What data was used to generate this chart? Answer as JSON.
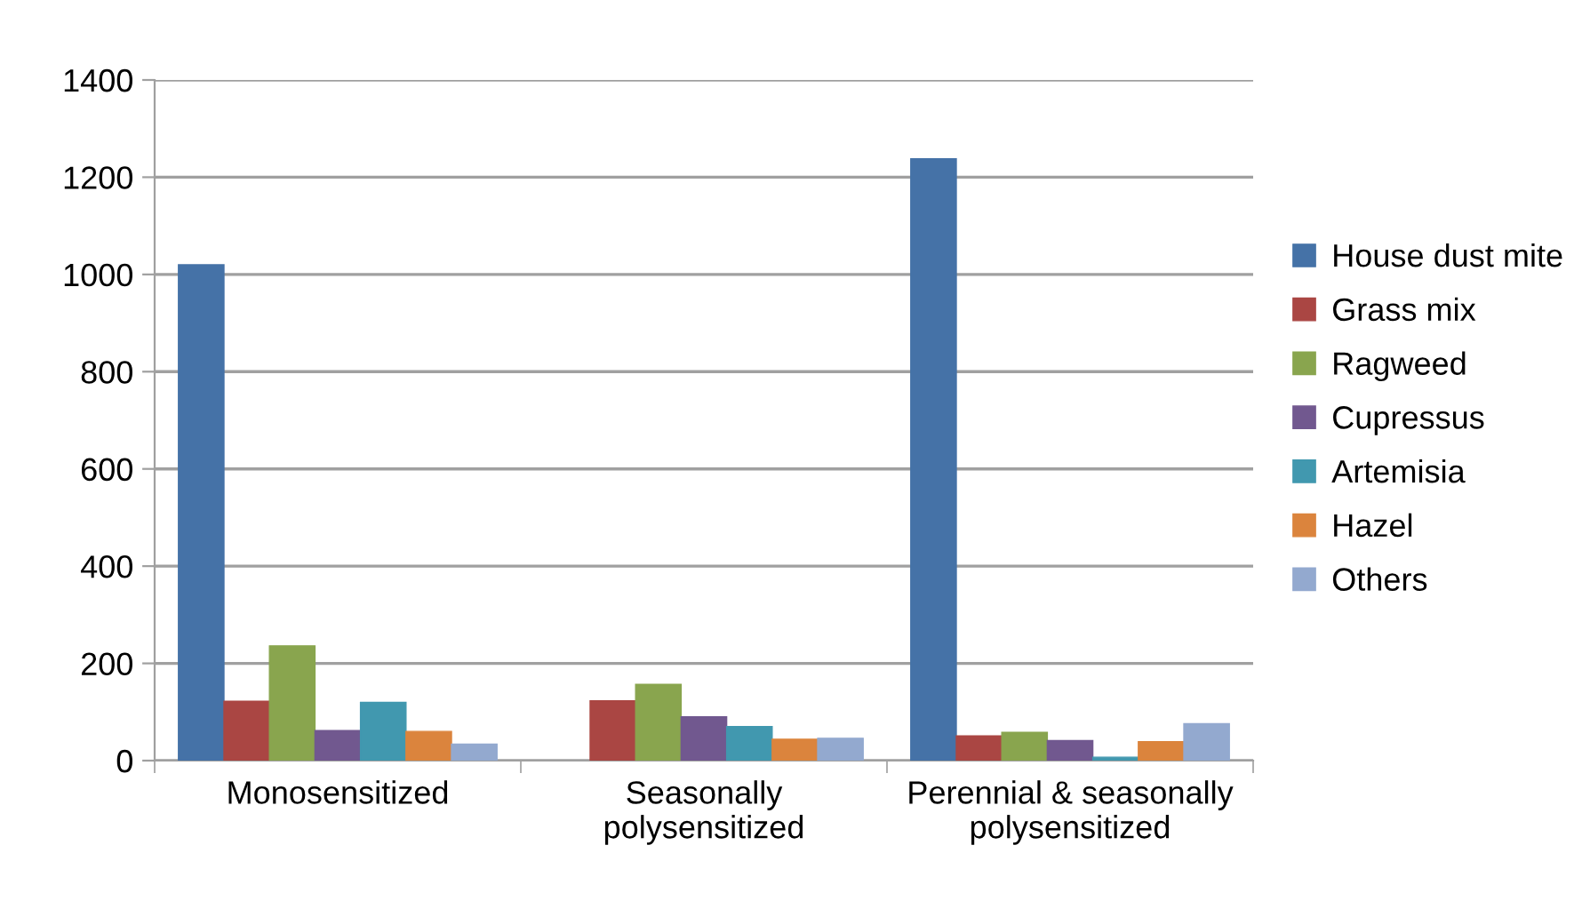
{
  "chart_data": {
    "type": "bar",
    "categories": [
      "Monosensitized",
      "Seasonally\npolysensitized",
      "Perennial & seasonally\npolysensitized"
    ],
    "series": [
      {
        "name": "House dust mite",
        "color": "#4572a7",
        "values": [
          1020,
          null,
          1238
        ]
      },
      {
        "name": "Grass mix",
        "color": "#aa4643",
        "values": [
          122,
          123,
          51
        ]
      },
      {
        "name": "Ragweed",
        "color": "#89a54e",
        "values": [
          236,
          157,
          58
        ]
      },
      {
        "name": "Cupressus",
        "color": "#71588f",
        "values": [
          62,
          90,
          41
        ]
      },
      {
        "name": "Artemisia",
        "color": "#4198af",
        "values": [
          120,
          70,
          7
        ]
      },
      {
        "name": "Hazel",
        "color": "#db843d",
        "values": [
          60,
          44,
          39
        ]
      },
      {
        "name": "Others",
        "color": "#93a9cf",
        "values": [
          34,
          46,
          76
        ]
      }
    ],
    "ylim": [
      0,
      1400
    ],
    "yticks": [
      0,
      200,
      400,
      600,
      800,
      1000,
      1200,
      1400
    ],
    "grid": "y",
    "legend": "right"
  }
}
